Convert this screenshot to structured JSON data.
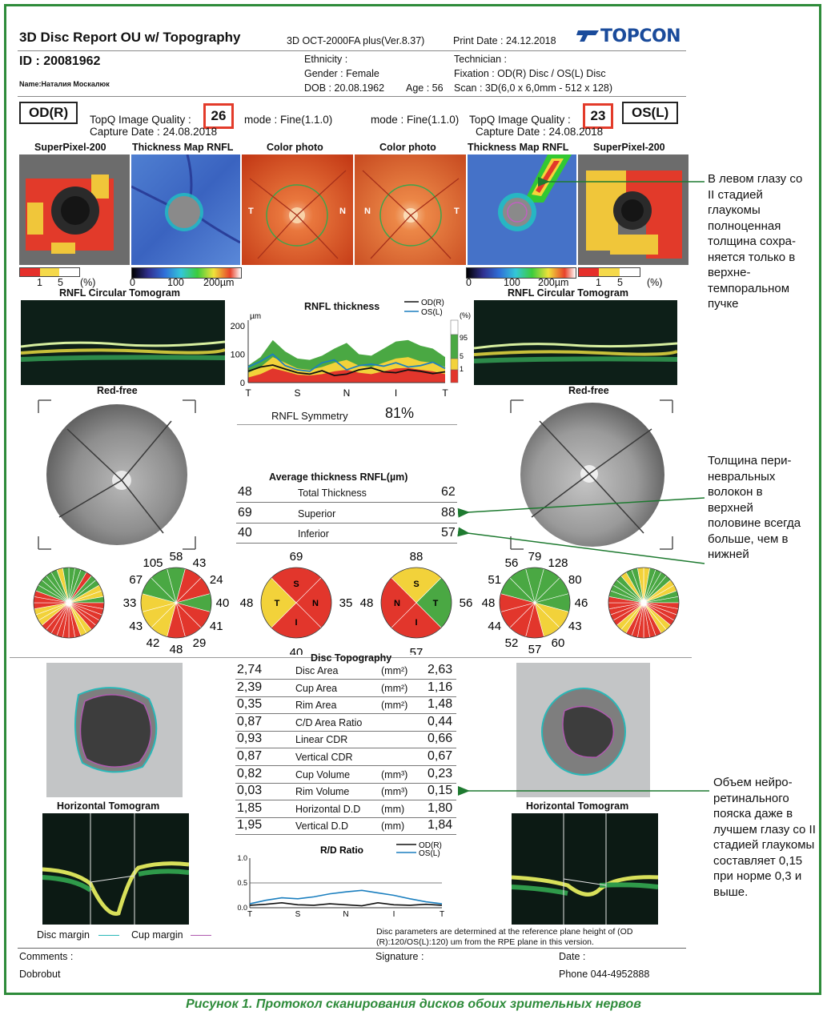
{
  "header": {
    "title": "3D Disc Report OU w/ Topography",
    "device": "3D OCT-2000FA plus(Ver.8.37)",
    "print_date": "Print Date : 24.12.2018",
    "brand": "TOPCON",
    "id": "ID : 20081962",
    "name": "Name:Наталия Москалюк",
    "ethnicity": "Ethnicity :",
    "gender": "Gender : Female",
    "dob": "DOB : 20.08.1962",
    "age": "Age : 56",
    "technician": "Technician :",
    "fixation": "Fixation : OD(R) Disc / OS(L) Disc",
    "scan": "Scan : 3D(6,0 x 6,0mm - 512 x 128)"
  },
  "eyes": {
    "od": {
      "label": "OD(R)",
      "quality_label": "TopQ Image Quality :",
      "quality": "26",
      "mode": "mode : Fine(1.1.0)",
      "capture": "Capture Date : 24.08.2018"
    },
    "os": {
      "label": "OS(L)",
      "quality_label": "TopQ Image Quality :",
      "quality": "23",
      "mode": "mode : Fine(1.1.0)",
      "capture": "Capture Date : 24.08.2018"
    }
  },
  "image_titles": {
    "superpixel": "SuperPixel-200",
    "thickness_map": "Thickness Map RNFL",
    "color_photo": "Color photo",
    "circular_tomogram": "RNFL Circular Tomogram",
    "red_free": "Red-free",
    "horizontal_tomogram": "Horizontal Tomogram"
  },
  "fundus_labels": {
    "t": "T",
    "n": "N"
  },
  "scales": {
    "percent": [
      "1",
      "5",
      "(%)"
    ],
    "thickness": [
      "0",
      "100",
      "200µm"
    ],
    "percent_colors": [
      "#e52f2a",
      "#f5d94a",
      "#ffffff"
    ]
  },
  "rnfl_chart_title": "RNFL thickness",
  "rnfl_symmetry": {
    "label": "RNFL Symmetry",
    "value": "81%"
  },
  "avg_thickness": {
    "title": "Average thickness RNFL(µm)",
    "rows": [
      {
        "label": "Total Thickness",
        "od": "48",
        "os": "62"
      },
      {
        "label": "Superior",
        "od": "69",
        "os": "88"
      },
      {
        "label": "Inferior",
        "od": "40",
        "os": "57"
      }
    ]
  },
  "clock_od": {
    "values": [
      "58",
      "43",
      "24",
      "40",
      "41",
      "29",
      "48",
      "42",
      "43",
      "33",
      "67",
      "105"
    ]
  },
  "clock_os": {
    "values": [
      "79",
      "128",
      "80",
      "46",
      "43",
      "60",
      "57",
      "52",
      "44",
      "48",
      "51",
      "56"
    ]
  },
  "quadrant_od": {
    "S": "69",
    "N": "35",
    "I": "40",
    "T": "48",
    "labels": [
      "S",
      "N",
      "I",
      "T"
    ]
  },
  "quadrant_os": {
    "S": "88",
    "N": "48",
    "I": "57",
    "T": "56",
    "labels": [
      "S",
      "T",
      "I",
      "N"
    ]
  },
  "disc_topography": {
    "title": "Disc Topography",
    "rows": [
      {
        "od": "2,74",
        "label": "Disc Area",
        "unit": "(mm²)",
        "os": "2,63"
      },
      {
        "od": "2,39",
        "label": "Cup Area",
        "unit": "(mm²)",
        "os": "1,16"
      },
      {
        "od": "0,35",
        "label": "Rim Area",
        "unit": "(mm²)",
        "os": "1,48"
      },
      {
        "od": "0,87",
        "label": "C/D Area Ratio",
        "unit": "",
        "os": "0,44"
      },
      {
        "od": "0,93",
        "label": "Linear CDR",
        "unit": "",
        "os": "0,66"
      },
      {
        "od": "0,87",
        "label": "Vertical CDR",
        "unit": "",
        "os": "0,67"
      },
      {
        "od": "0,82",
        "label": "Cup Volume",
        "unit": "(mm³)",
        "os": "0,23"
      },
      {
        "od": "0,03",
        "label": "Rim Volume",
        "unit": "(mm³)",
        "os": "0,15"
      },
      {
        "od": "1,85",
        "label": "Horizontal D.D",
        "unit": "(mm)",
        "os": "1,80"
      },
      {
        "od": "1,95",
        "label": "Vertical D.D",
        "unit": "(mm)",
        "os": "1,84"
      }
    ]
  },
  "margins": {
    "disc": "Disc margin",
    "cup": "Cup margin"
  },
  "footer": {
    "note": "Disc parameters are determined at the reference plane height of (OD (R):120/OS(L):120) um from the RPE plane in this version.",
    "comments": "Comments :",
    "signature": "Signature :",
    "date": "Date :",
    "clinic": "Dobrobut",
    "phone": "Phone 044-4952888"
  },
  "annotations": {
    "a1": "В левом глазу со II стадией глаукомы полноценная толщина сохра-няется только в верхне-темпоральном пучке",
    "a2": "Толщина пери-невральных волокон в верхней половине всегда больше, чем в нижней",
    "a3": "Объем нейро-ретинального пояска даже в лучшем глазу со II стадией глаукомы составляет 0,15 при норме 0,3 и выше."
  },
  "figure_caption": "Рисунок 1. Протокол сканирования дисков обоих зрительных нервов",
  "chart_data": [
    {
      "type": "line",
      "title": "RNFL thickness",
      "x_labels": [
        "T",
        "S",
        "N",
        "I",
        "T"
      ],
      "y_ticks": [
        "0",
        "100",
        "200"
      ],
      "y_unit": "µm",
      "ylim": [
        0,
        220
      ],
      "percentile_bands": {
        "labels": [
          "(%)",
          "95",
          "5",
          "1"
        ]
      },
      "series": [
        {
          "name": "OD(R)",
          "color": "#111111",
          "values": [
            40,
            55,
            62,
            48,
            35,
            30,
            42,
            25,
            30,
            45,
            52,
            38,
            35,
            45,
            40,
            32,
            38
          ]
        },
        {
          "name": "OS(L)",
          "color": "#1b7fbf",
          "values": [
            55,
            75,
            100,
            60,
            45,
            40,
            70,
            80,
            45,
            60,
            65,
            58,
            70,
            55,
            60,
            72,
            50
          ]
        }
      ]
    },
    {
      "type": "line",
      "title": "R/D Ratio",
      "x_labels": [
        "T",
        "S",
        "N",
        "I",
        "T"
      ],
      "y_ticks": [
        "0.0",
        "0.5",
        "1.0"
      ],
      "ylim": [
        0,
        1.0
      ],
      "series": [
        {
          "name": "OD(R)",
          "color": "#111111",
          "values": [
            0.05,
            0.07,
            0.1,
            0.06,
            0.05,
            0.08,
            0.06,
            0.04,
            0.1,
            0.06,
            0.05,
            0.07,
            0.05
          ]
        },
        {
          "name": "OS(L)",
          "color": "#1b7fbf",
          "values": [
            0.08,
            0.15,
            0.2,
            0.18,
            0.22,
            0.28,
            0.32,
            0.35,
            0.3,
            0.25,
            0.18,
            0.12,
            0.08
          ]
        }
      ]
    }
  ]
}
